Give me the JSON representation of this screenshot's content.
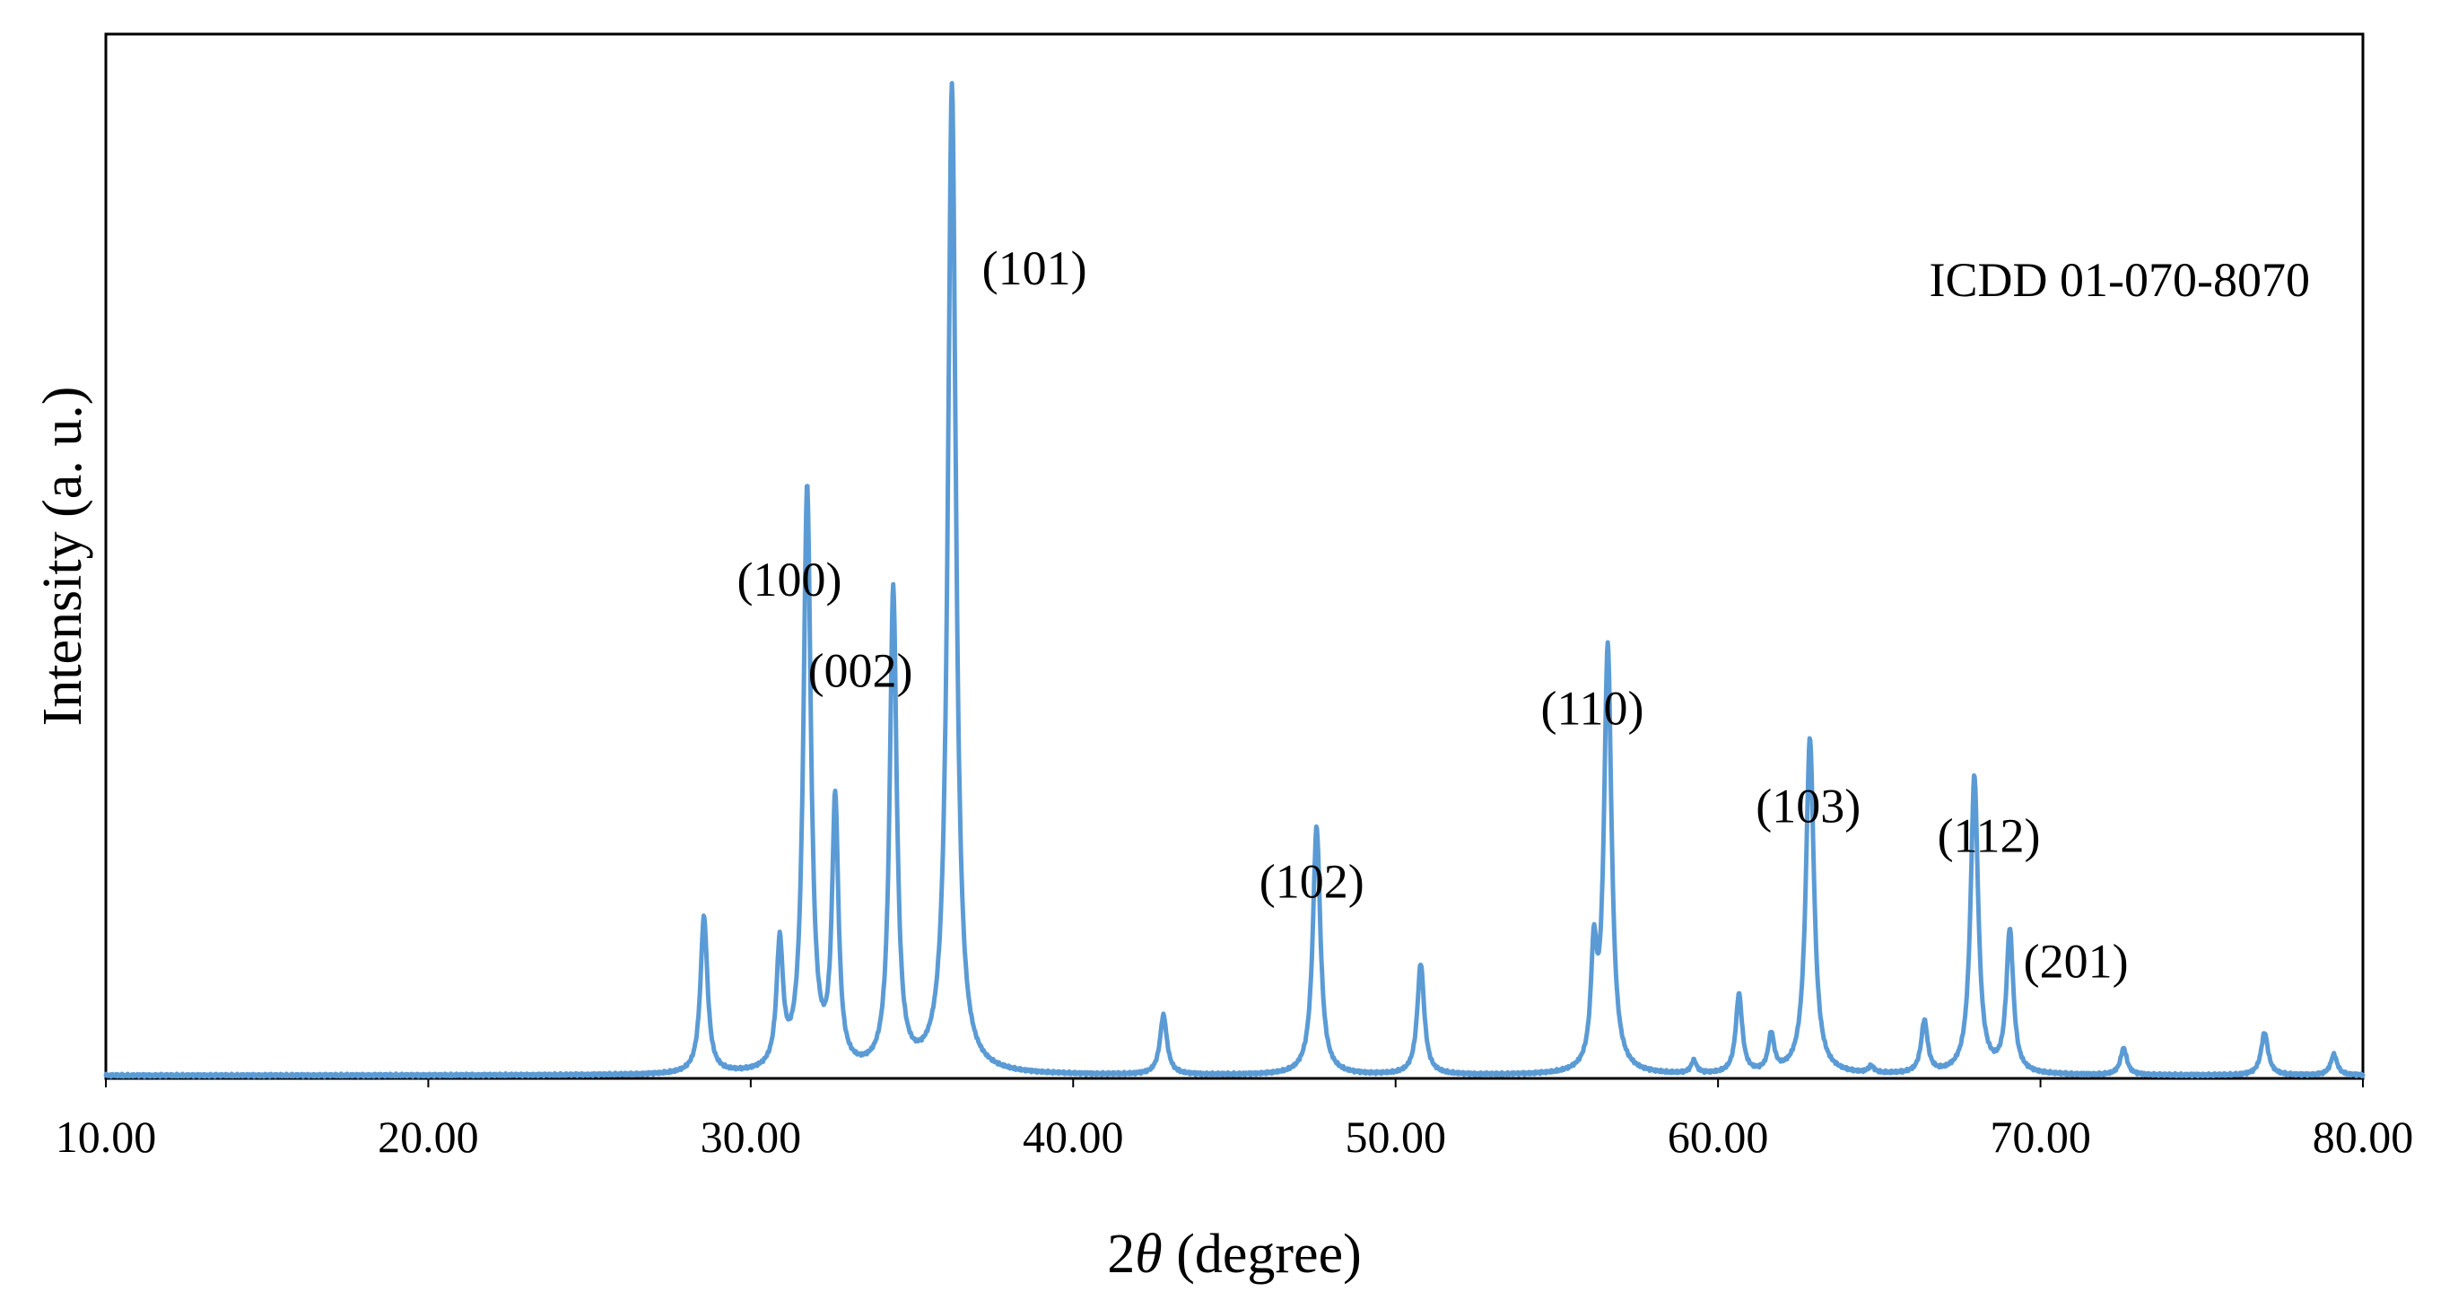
{
  "chart_data": {
    "type": "line",
    "title": "",
    "xlabel_prefix": "2",
    "xlabel_symbol": "θ",
    "xlabel_suffix": " (degree)",
    "ylabel": "Intensity (a. u.)",
    "xlim": [
      10,
      80
    ],
    "ylim": [
      0,
      100
    ],
    "x_ticks": [
      10,
      20,
      30,
      40,
      50,
      60,
      70,
      80
    ],
    "x_tick_labels": [
      "10.00",
      "20.00",
      "30.00",
      "40.00",
      "50.00",
      "60.00",
      "70.00",
      "80.00"
    ],
    "y_ticks_shown": false,
    "grid": false,
    "legend": "none",
    "annotation": "ICDD 01-070-8070",
    "series": [
      {
        "color": "#5b9bd5",
        "baseline": 0.3,
        "peaks": [
          {
            "x": 28.55,
            "y": 15.9,
            "w": 0.13
          },
          {
            "x": 30.9,
            "y": 12.5,
            "w": 0.12
          },
          {
            "x": 31.75,
            "y": 58.8,
            "w": 0.14
          },
          {
            "x": 32.62,
            "y": 26.8,
            "w": 0.12
          },
          {
            "x": 34.42,
            "y": 48.6,
            "w": 0.13
          },
          {
            "x": 36.24,
            "y": 100.0,
            "w": 0.15
          },
          {
            "x": 42.8,
            "y": 6.0,
            "w": 0.13
          },
          {
            "x": 47.55,
            "y": 25.1,
            "w": 0.14
          },
          {
            "x": 50.78,
            "y": 11.2,
            "w": 0.13
          },
          {
            "x": 56.15,
            "y": 11.0,
            "w": 0.11
          },
          {
            "x": 56.58,
            "y": 43.0,
            "w": 0.14
          },
          {
            "x": 59.25,
            "y": 1.3,
            "w": 0.1
          },
          {
            "x": 60.65,
            "y": 8.0,
            "w": 0.12
          },
          {
            "x": 61.65,
            "y": 3.8,
            "w": 0.11
          },
          {
            "x": 62.85,
            "y": 34.0,
            "w": 0.15
          },
          {
            "x": 64.75,
            "y": 0.7,
            "w": 0.1
          },
          {
            "x": 66.4,
            "y": 5.3,
            "w": 0.12
          },
          {
            "x": 67.95,
            "y": 30.1,
            "w": 0.14
          },
          {
            "x": 69.05,
            "y": 14.4,
            "w": 0.13
          },
          {
            "x": 72.58,
            "y": 2.7,
            "w": 0.12
          },
          {
            "x": 76.95,
            "y": 4.3,
            "w": 0.13
          },
          {
            "x": 79.1,
            "y": 2.1,
            "w": 0.12
          }
        ]
      }
    ],
    "peak_labels": [
      {
        "text": "(100)",
        "x": 31.2,
        "y": 48.8
      },
      {
        "text": "(002)",
        "x": 33.4,
        "y": 39.6
      },
      {
        "text": "(101)",
        "x": 38.8,
        "y": 80.3
      },
      {
        "text": "(102)",
        "x": 47.4,
        "y": 18.3
      },
      {
        "text": "(110)",
        "x": 56.1,
        "y": 35.8
      },
      {
        "text": "(103)",
        "x": 62.8,
        "y": 25.9
      },
      {
        "text": "(112)",
        "x": 68.4,
        "y": 22.9
      },
      {
        "text": "(201)",
        "x": 71.1,
        "y": 10.2
      }
    ]
  }
}
